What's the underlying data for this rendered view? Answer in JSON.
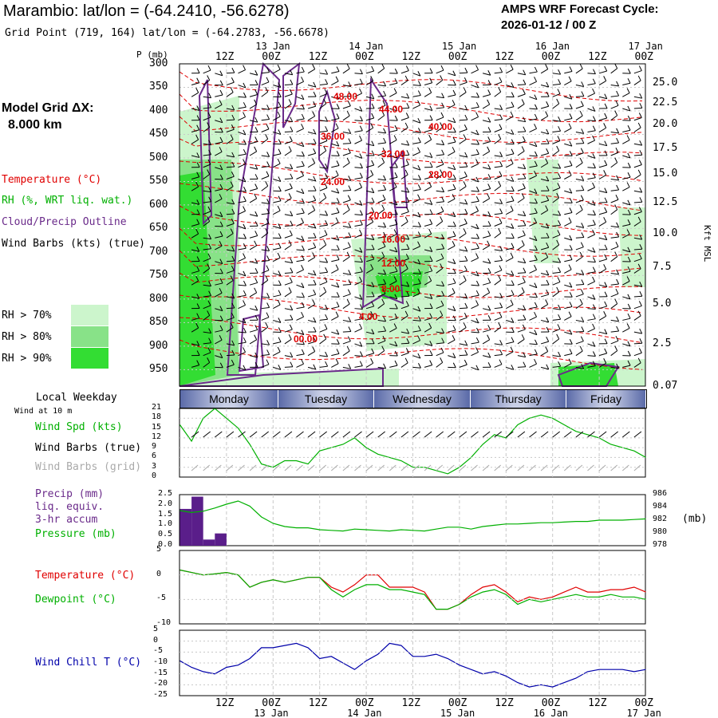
{
  "header": {
    "station_title": "Marambio:  lat/lon = (-64.2410, -56.6278)",
    "grid_point": "Grid Point (719, 164) lat/lon = (-64.2783, -56.6678)",
    "cycle_line1": "AMPS WRF Forecast Cycle:",
    "cycle_line2": "2026-01-12 / 00  Z"
  },
  "model": {
    "label": "Model Grid ΔX:",
    "value": "8.000 km"
  },
  "legend": {
    "temperature": "Temperature (°C)",
    "rh": "RH (%, WRT liq. wat.)",
    "cloud": "Cloud/Precip Outline",
    "wind": "Wind Barbs (kts) (true)",
    "rh70": "RH > 70%",
    "rh80": "RH > 80%",
    "rh90": "RH > 90%"
  },
  "colors": {
    "rh70": "#ccf5cc",
    "rh80": "#88e288",
    "rh90": "#33dd33",
    "temp": "#e00000",
    "cloud": "#6a2a8a",
    "wind": "#000000",
    "grid_barb": "#aaaaaa",
    "dewpoint": "#00b000",
    "windchill": "#0000aa"
  },
  "time_axis": {
    "top_labels": [
      "12Z",
      "00Z",
      "12Z",
      "00Z",
      "12Z",
      "00Z",
      "12Z",
      "00Z",
      "12Z",
      "00Z"
    ],
    "top_dates": [
      "13 Jan",
      "14 Jan",
      "15 Jan",
      "16 Jan",
      "17 Jan"
    ],
    "bottom_labels": [
      "12Z",
      "00Z",
      "12Z",
      "00Z",
      "12Z",
      "00Z",
      "12Z",
      "00Z",
      "12Z",
      "00Z"
    ],
    "bottom_dates": [
      "13 Jan",
      "14 Jan",
      "15 Jan",
      "16 Jan",
      "17 Jan"
    ]
  },
  "sounding": {
    "p_label": "P (mb)",
    "pressure_ticks": [
      "300",
      "350",
      "400",
      "450",
      "500",
      "550",
      "600",
      "650",
      "700",
      "750",
      "800",
      "850",
      "900",
      "950"
    ],
    "height_ticks": [
      "25.0",
      "22.5",
      "20.0",
      "17.5",
      "15.0",
      "12.5",
      "10.0",
      "7.5",
      "5.0",
      "2.5",
      "0.07"
    ],
    "height_unit": "Kft MSL",
    "temp_contour_labels": [
      "48.00",
      "44.00",
      "40.00",
      "36.00",
      "32.00",
      "28.00",
      "24.00",
      "20.00",
      "16.00",
      "12.00",
      "8.00",
      "4.00",
      "00.00"
    ]
  },
  "weekday": {
    "label": "Local Weekday",
    "days": [
      "Monday",
      "Tuesday",
      "Wednesday",
      "Thursday",
      "Friday"
    ]
  },
  "surface": {
    "wind_note": "Wind at 10 m",
    "wind_spd": "Wind Spd (kts)",
    "wind_barbs_true": "Wind Barbs (true)",
    "wind_barbs_grid": "Wind Barbs (grid)",
    "wind_ticks": [
      "21",
      "18",
      "15",
      "12",
      "9",
      "6",
      "3",
      "0"
    ],
    "precip_l1": "Precip (mm)",
    "precip_l2": "liq. equiv.",
    "precip_l3": "3-hr accum",
    "pressure_label": "Pressure (mb)",
    "precip_ticks": [
      "2.5",
      "2.0",
      "1.5",
      "1.0",
      "0.5",
      "0.0"
    ],
    "pressure_ticks": [
      "986",
      "984",
      "982",
      "980",
      "978"
    ],
    "pressure_unit": "(mb)",
    "temp_label": "Temperature (°C)",
    "dew_label": "Dewpoint (°C)",
    "temp_ticks": [
      "5",
      "0",
      "-5",
      "-10"
    ],
    "chill_label": "Wind Chill T (°C)",
    "chill_ticks": [
      "5",
      "0",
      "-5",
      "-10",
      "-15",
      "-20",
      "-25"
    ]
  },
  "chart_data": [
    {
      "type": "line",
      "name": "wind_speed_10m",
      "x_hours": [
        0,
        3,
        6,
        9,
        12,
        15,
        18,
        21,
        24,
        27,
        30,
        33,
        36,
        39,
        42,
        45,
        48,
        51,
        54,
        57,
        60,
        63,
        66,
        69,
        72,
        75,
        78,
        81,
        84,
        87,
        90,
        93,
        96,
        99,
        102,
        105,
        108,
        111,
        114,
        117,
        120
      ],
      "ylabel": "Wind Spd (kts)",
      "ylim": [
        0,
        21
      ],
      "values": [
        16,
        11,
        18,
        21,
        18,
        15,
        10,
        4,
        3,
        5,
        5,
        4,
        8,
        9,
        10,
        12,
        9,
        7,
        6,
        5,
        3,
        3,
        2,
        1,
        3,
        6,
        10,
        13,
        12,
        16,
        18,
        19,
        18,
        16,
        14,
        13,
        12,
        10,
        9,
        8,
        6
      ]
    },
    {
      "type": "line",
      "name": "pressure",
      "x_hours": [
        0,
        3,
        6,
        9,
        12,
        15,
        18,
        21,
        24,
        27,
        30,
        33,
        36,
        39,
        42,
        45,
        48,
        51,
        54,
        57,
        60,
        63,
        66,
        69,
        72,
        75,
        78,
        81,
        84,
        87,
        90,
        93,
        96,
        99,
        102,
        105,
        108,
        111,
        114,
        117,
        120
      ],
      "ylabel": "Pressure (mb)",
      "ylim": [
        978,
        986
      ],
      "values": [
        983.5,
        983.2,
        983.4,
        983.9,
        984.5,
        985.0,
        984.2,
        982.5,
        981.5,
        981.0,
        980.8,
        980.8,
        980.5,
        980.4,
        980.3,
        980.6,
        980.5,
        980.4,
        980.3,
        980.5,
        980.4,
        980.3,
        980.6,
        980.9,
        980.9,
        980.6,
        981.0,
        981.2,
        981.4,
        981.4,
        981.5,
        981.6,
        981.6,
        981.7,
        981.8,
        981.8,
        982.0,
        982.0,
        982.0,
        982.1,
        982.2
      ]
    },
    {
      "type": "bar",
      "name": "precip_3hr",
      "ylabel": "Precip (mm)",
      "ylim": [
        0,
        2.5
      ],
      "x_hours": [
        0,
        3,
        6,
        9
      ],
      "values": [
        1.8,
        2.4,
        0.3,
        0.6
      ]
    },
    {
      "type": "line",
      "name": "temperature",
      "x_hours": [
        0,
        3,
        6,
        9,
        12,
        15,
        18,
        21,
        24,
        27,
        30,
        33,
        36,
        39,
        42,
        45,
        48,
        51,
        54,
        57,
        60,
        63,
        66,
        69,
        72,
        75,
        78,
        81,
        84,
        87,
        90,
        93,
        96,
        99,
        102,
        105,
        108,
        111,
        114,
        117,
        120
      ],
      "ylabel": "Temperature (°C)",
      "ylim": [
        -10,
        5
      ],
      "values": [
        1.0,
        0.5,
        0.0,
        0.2,
        0.5,
        0.0,
        -2.5,
        -1.5,
        -1.0,
        -1.5,
        -1.0,
        -0.5,
        -0.5,
        -2.5,
        -3.5,
        -2.0,
        0.0,
        0.0,
        -2.5,
        -2.5,
        -2.5,
        -3.5,
        -7.0,
        -7.0,
        -6.0,
        -4.0,
        -2.5,
        -2.0,
        -3.5,
        -5.5,
        -4.5,
        -5.0,
        -4.5,
        -3.5,
        -2.5,
        -3.5,
        -3.5,
        -3.0,
        -3.0,
        -2.5,
        -3.5
      ]
    },
    {
      "type": "line",
      "name": "dewpoint",
      "x_hours": [
        0,
        3,
        6,
        9,
        12,
        15,
        18,
        21,
        24,
        27,
        30,
        33,
        36,
        39,
        42,
        45,
        48,
        51,
        54,
        57,
        60,
        63,
        66,
        69,
        72,
        75,
        78,
        81,
        84,
        87,
        90,
        93,
        96,
        99,
        102,
        105,
        108,
        111,
        114,
        117,
        120
      ],
      "ylabel": "Dewpoint (°C)",
      "ylim": [
        -10,
        5
      ],
      "values": [
        1.0,
        0.5,
        0.0,
        0.2,
        0.5,
        0.0,
        -2.5,
        -1.5,
        -1.0,
        -1.5,
        -1.0,
        -0.5,
        -0.5,
        -3.0,
        -4.5,
        -3.0,
        -2.0,
        -2.0,
        -3.0,
        -3.0,
        -3.5,
        -4.0,
        -7.0,
        -7.0,
        -6.0,
        -4.5,
        -3.5,
        -3.0,
        -4.0,
        -6.0,
        -5.0,
        -5.5,
        -5.0,
        -4.5,
        -4.0,
        -4.5,
        -4.5,
        -4.0,
        -4.5,
        -4.5,
        -5.0
      ]
    },
    {
      "type": "line",
      "name": "wind_chill",
      "x_hours": [
        0,
        3,
        6,
        9,
        12,
        15,
        18,
        21,
        24,
        27,
        30,
        33,
        36,
        39,
        42,
        45,
        48,
        51,
        54,
        57,
        60,
        63,
        66,
        69,
        72,
        75,
        78,
        81,
        84,
        87,
        90,
        93,
        96,
        99,
        102,
        105,
        108,
        111,
        114,
        117,
        120
      ],
      "ylabel": "Wind Chill T (°C)",
      "ylim": [
        -25,
        5
      ],
      "values": [
        -9,
        -12,
        -14,
        -15,
        -12,
        -11,
        -8,
        -3,
        -3,
        -2,
        -1,
        -3,
        -8,
        -7,
        -10,
        -13,
        -9,
        -6,
        -1,
        -2,
        -7,
        -7,
        -6,
        -8,
        -11,
        -13,
        -15,
        -14,
        -16,
        -19,
        -21,
        -20,
        -21,
        -19,
        -17,
        -14,
        -13,
        -13,
        -13,
        -14,
        -13
      ]
    }
  ]
}
